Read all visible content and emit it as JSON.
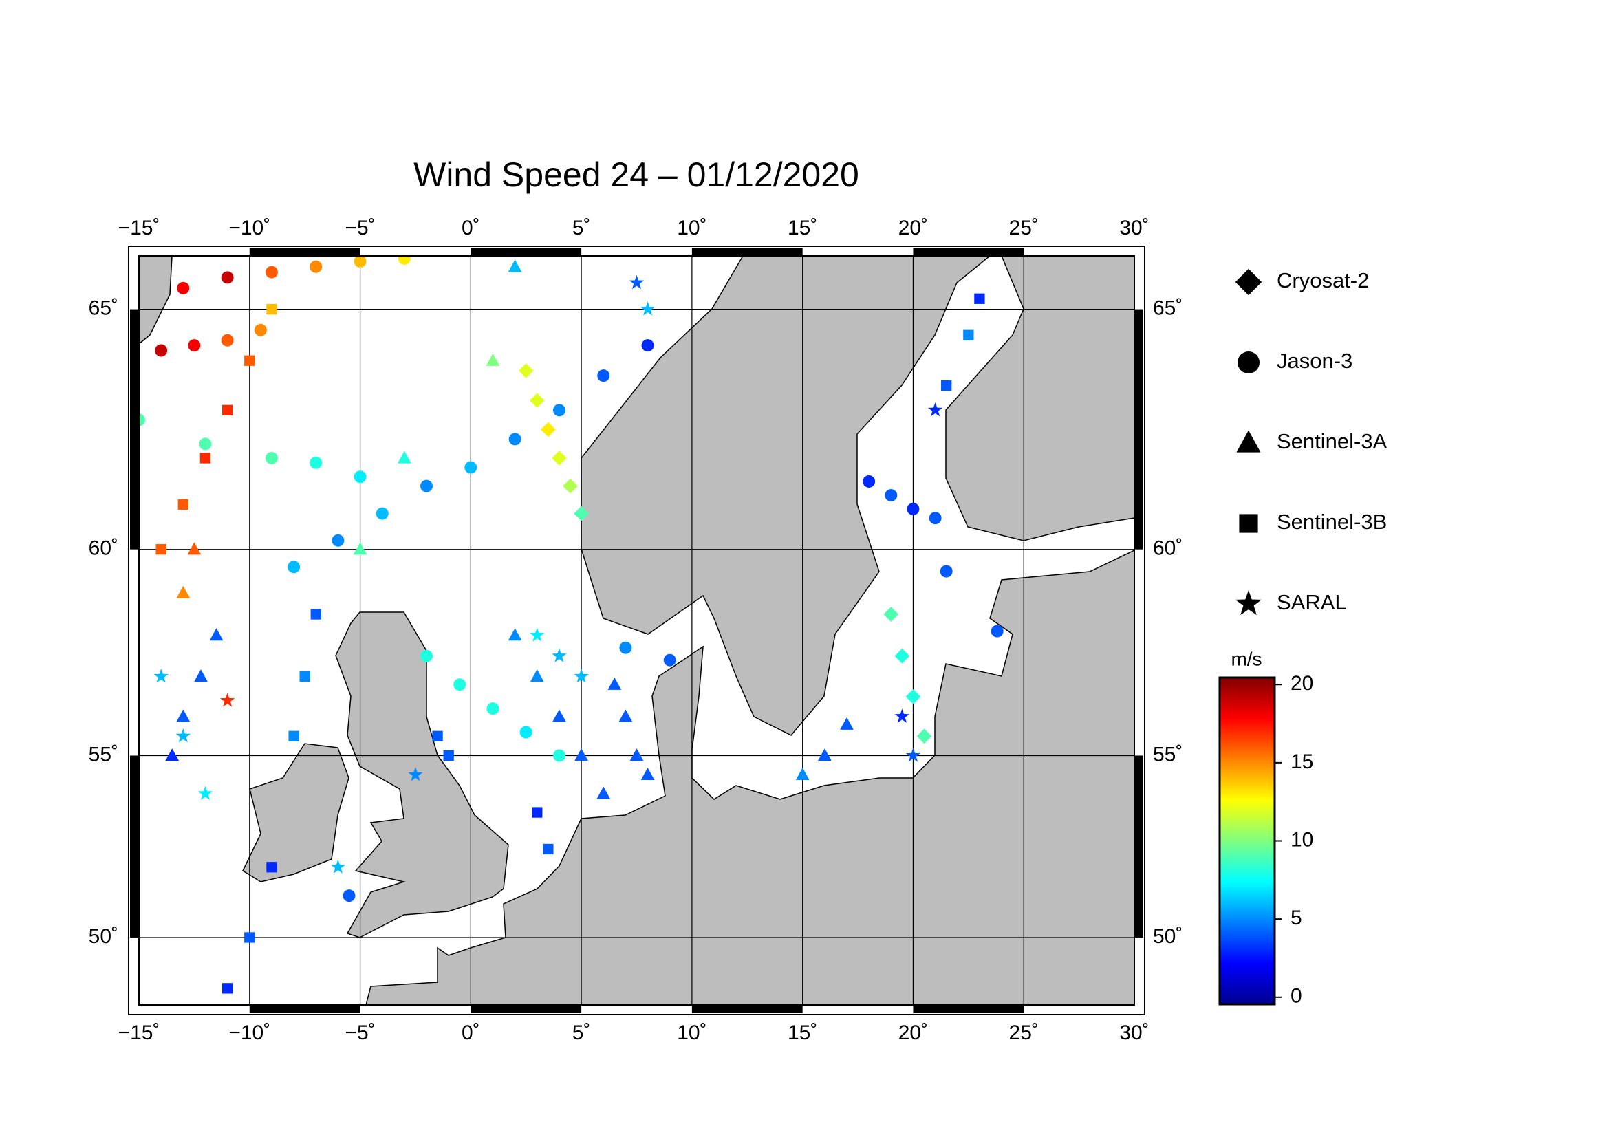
{
  "chart_data": {
    "type": "map",
    "title": "Wind Speed 24 – 01/12/2020",
    "projection": "mercator",
    "xlim": [
      -15,
      30
    ],
    "ylim": [
      48,
      66
    ],
    "xticks": [
      {
        "value": -15,
        "label": "−15˚"
      },
      {
        "value": -10,
        "label": "−10˚"
      },
      {
        "value": -5,
        "label": "−5˚"
      },
      {
        "value": 0,
        "label": "0˚"
      },
      {
        "value": 5,
        "label": "5˚"
      },
      {
        "value": 10,
        "label": "10˚"
      },
      {
        "value": 15,
        "label": "15˚"
      },
      {
        "value": 20,
        "label": "20˚"
      },
      {
        "value": 25,
        "label": "25˚"
      },
      {
        "value": 30,
        "label": "30˚"
      }
    ],
    "yticks": [
      {
        "value": 50,
        "label": "50˚"
      },
      {
        "value": 55,
        "label": "55˚"
      },
      {
        "value": 60,
        "label": "60˚"
      },
      {
        "value": 65,
        "label": "65˚"
      }
    ],
    "grid": true,
    "colormap": "jet",
    "colorbar": {
      "label": "m/s",
      "range": [
        -0.45,
        20.45
      ],
      "ticks": [
        0,
        5,
        10,
        15,
        20
      ]
    },
    "legend": "right",
    "series": [
      {
        "name": "Cryosat-2",
        "marker": "diamond",
        "lon": [
          2.5,
          3,
          3.5,
          4,
          4.5,
          5,
          19,
          19.5,
          20,
          20.5
        ],
        "lat": [
          63.8,
          63.2,
          62.6,
          62,
          61.4,
          60.8,
          58.5,
          57.5,
          56.5,
          55.5
        ],
        "values": [
          12,
          12,
          13,
          12,
          11,
          9,
          9,
          8,
          8,
          9
        ]
      },
      {
        "name": "Jason-3",
        "marker": "circle",
        "lon": [
          -13,
          -11,
          -9,
          -7,
          -5,
          -3,
          -14,
          -12.5,
          -11,
          -9.5,
          -8,
          -6,
          -4,
          -2,
          0,
          2,
          4,
          6,
          8,
          -15,
          -12,
          -9,
          -7,
          -5,
          -2,
          -0.5,
          1,
          2.5,
          4,
          7,
          9,
          18,
          19,
          20,
          21,
          23.8,
          21.5,
          -5.5
        ],
        "lat": [
          65.4,
          65.6,
          65.7,
          65.8,
          65.9,
          65.95,
          64.2,
          64.3,
          64.4,
          64.6,
          59.6,
          60.2,
          60.8,
          61.4,
          61.8,
          62.4,
          63,
          63.7,
          64.3,
          62.8,
          62.3,
          62,
          61.9,
          61.6,
          57.5,
          56.8,
          56.2,
          55.6,
          55,
          57.7,
          57.4,
          61.5,
          61.2,
          60.9,
          60.7,
          58.1,
          59.5,
          51.2
        ],
        "values": [
          18,
          19,
          16,
          15,
          14,
          13,
          19,
          18,
          16,
          15,
          6,
          5,
          6,
          5,
          6,
          5,
          5,
          4,
          3,
          9,
          9,
          9,
          8,
          7,
          8,
          8,
          8,
          7,
          8,
          5,
          4,
          3,
          4,
          3,
          4,
          4,
          4,
          4
        ]
      },
      {
        "name": "Sentinel-3A",
        "marker": "triangle",
        "lon": [
          -12.5,
          -13,
          -13.5,
          -13,
          -12.2,
          -11.5,
          2,
          3,
          4,
          5,
          6,
          6.5,
          7,
          7.5,
          8,
          17,
          16,
          15,
          -5,
          -3,
          1,
          2
        ],
        "lat": [
          60,
          59,
          55,
          56,
          57,
          58,
          58,
          57,
          56,
          55,
          54,
          56.8,
          56,
          55,
          54.5,
          55.8,
          55,
          54.5,
          60,
          62,
          64,
          65.8
        ],
        "values": [
          16,
          15,
          3,
          4,
          4,
          4,
          5,
          5,
          4,
          4,
          4,
          4,
          4,
          4,
          4,
          4,
          4,
          5,
          9,
          8,
          10,
          6
        ]
      },
      {
        "name": "Sentinel-3B",
        "marker": "square",
        "lon": [
          -14,
          -13,
          -12,
          -11,
          -10,
          -9,
          -7,
          -7.5,
          -8,
          -9,
          -10,
          -11,
          -1.5,
          -1,
          3,
          3.5,
          23,
          22.5,
          21.5
        ],
        "lat": [
          60,
          61,
          62,
          63,
          64,
          65,
          58.5,
          57,
          55.5,
          52,
          50,
          48.5,
          55.5,
          55,
          53.5,
          52.5,
          65.2,
          64.5,
          63.5
        ],
        "values": [
          16,
          16,
          17,
          17,
          16,
          14,
          4,
          5,
          5,
          3,
          4,
          3,
          4,
          4,
          3,
          4,
          3,
          5,
          4
        ]
      },
      {
        "name": "SARAL",
        "marker": "star",
        "lon": [
          -11,
          -14,
          -13,
          -12,
          3,
          4,
          5,
          8,
          7.5,
          19.5,
          20,
          21,
          -2.5,
          -6
        ],
        "lat": [
          56.4,
          57,
          55.5,
          54,
          58,
          57.5,
          57,
          65,
          65.5,
          56,
          55,
          63,
          54.5,
          52
        ],
        "values": [
          17,
          6,
          6,
          7,
          7,
          6,
          6,
          6,
          4,
          3,
          4,
          3,
          5,
          6
        ]
      }
    ]
  }
}
